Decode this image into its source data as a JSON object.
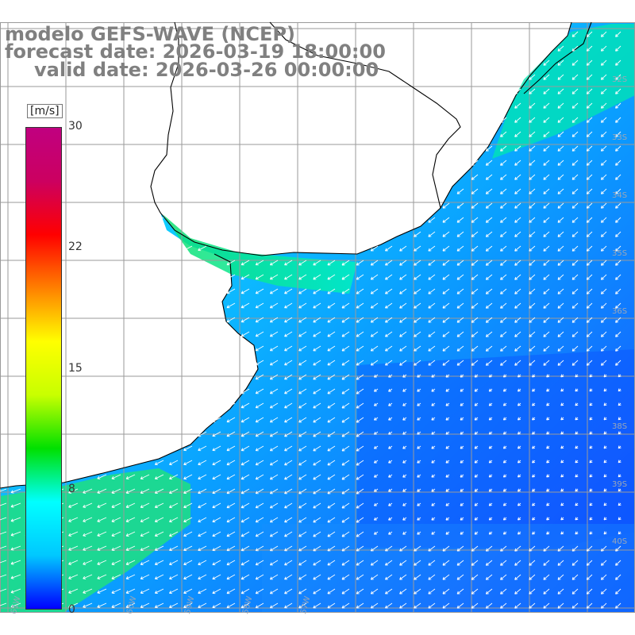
{
  "title": {
    "line1": "modelo GEFS-WAVE (NCEP)",
    "line2": "forecast date: 2026-03-19 18:00:00",
    "line3": "valid date: 2026-03-26 00:00:00"
  },
  "colorbar": {
    "unit": "[m/s]",
    "min": 0,
    "max": 30,
    "ticks": [
      "30",
      "22",
      "15",
      "8",
      "0"
    ],
    "colors": [
      "#0000ff",
      "#00c8ff",
      "#00ffff",
      "#00e000",
      "#c8ff00",
      "#ffff00",
      "#ff8000",
      "#ff0000",
      "#cc0060",
      "#c00080"
    ]
  },
  "latitude_labels": [
    "32S",
    "33S",
    "34S",
    "35S",
    "36S",
    "38S",
    "39S",
    "40S"
  ],
  "longitude_labels": [
    "61W",
    "60W",
    "59W",
    "58W",
    "57W"
  ],
  "field": {
    "variable": "wind speed",
    "ocean_base_color": "#1aa8ff",
    "shelf_color": "#00ffb0",
    "deep_color": "#1460ff",
    "land_color": "#ffffff",
    "coast_color": "#000000",
    "arrow_color": "#ffffff"
  }
}
